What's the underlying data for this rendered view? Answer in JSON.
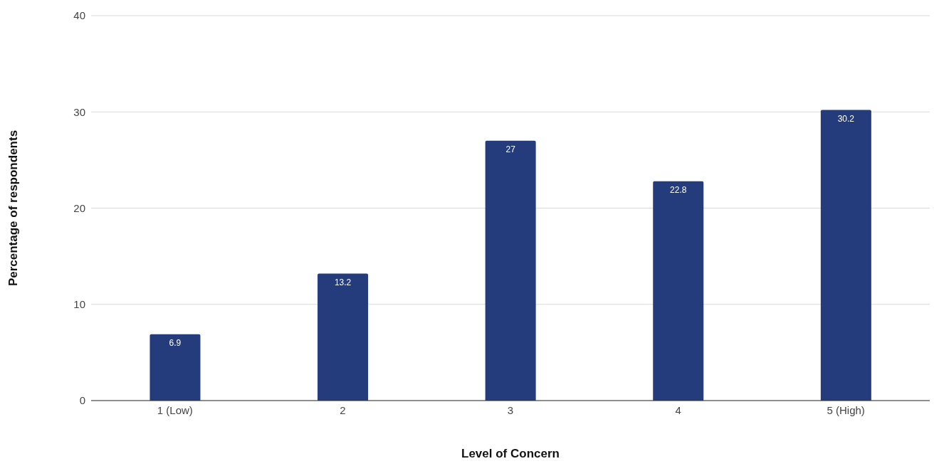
{
  "chart_data": {
    "type": "bar",
    "xlabel": "Level of Concern",
    "ylabel": "Percentage of respondents",
    "categories": [
      "1 (Low)",
      "2",
      "3",
      "4",
      "5 (High)"
    ],
    "values": [
      6.9,
      13.2,
      27,
      22.8,
      30.2
    ],
    "color": "#243c7c",
    "ylim": [
      0,
      40
    ],
    "yticks": [
      0,
      10,
      20,
      30,
      40
    ],
    "grid": "y",
    "data_labels": true
  }
}
